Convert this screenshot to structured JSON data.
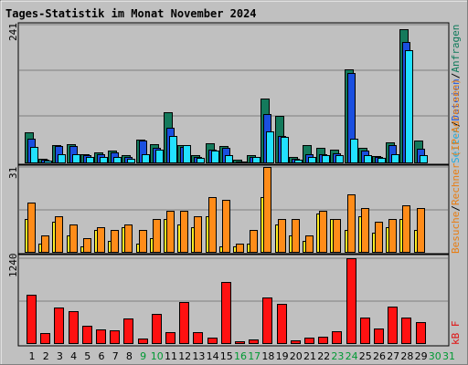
{
  "chart_data": {
    "type": "bar",
    "title": "Tages-Statistik im Monat November 2024",
    "categories": [
      "1",
      "2",
      "3",
      "4",
      "5",
      "6",
      "7",
      "8",
      "9",
      "10",
      "11",
      "12",
      "13",
      "14",
      "15",
      "16",
      "17",
      "18",
      "19",
      "20",
      "21",
      "22",
      "23",
      "24",
      "25",
      "26",
      "27",
      "28",
      "29",
      "30",
      "31"
    ],
    "weekend_days": [
      "9",
      "10",
      "16",
      "17",
      "23",
      "24",
      "30",
      "31"
    ],
    "colors": {
      "title": "#0000cc",
      "weekday_label": "#000000",
      "weekend_label": "#009933",
      "background": "#c0c0c0",
      "grid": "#808080",
      "anfragen": "#147a5c",
      "dateien": "#1a4fe0",
      "seiten": "#22e0ff",
      "rechner": "#ffee22",
      "besuche": "#ff8c19",
      "kb": "#ff1111",
      "label_anfragen": "#0e7a5a",
      "label_dateien": "#2255dd",
      "label_seiten": "#22aadd",
      "label_rechner": "#e87d12",
      "label_kb": "#e01111"
    },
    "panels": [
      {
        "name": "Anfragen/Dateien/Seiten",
        "ymax_label": "241",
        "ylim": [
          0,
          241
        ],
        "series": [
          {
            "name": "Anfragen",
            "values": [
              52,
              7,
              30,
              32,
              15,
              18,
              20,
              12,
              40,
              32,
              88,
              30,
              12,
              33,
              28,
              4,
              13,
              112,
              82,
              10,
              30,
              25,
              22,
              162,
              25,
              11,
              35,
              233,
              38,
              0,
              0
            ]
          },
          {
            "name": "Dateien",
            "values": [
              42,
              5,
              28,
              28,
              13,
              15,
              17,
              10,
              38,
              25,
              61,
              27,
              10,
              23,
              25,
              2,
              9,
              84,
              47,
              7,
              15,
              15,
              16,
              156,
              21,
              9,
              30,
              211,
              24,
              0,
              0
            ]
          },
          {
            "name": "Seiten",
            "values": [
              27,
              3,
              15,
              14,
              10,
              10,
              10,
              7,
              15,
              22,
              46,
              30,
              8,
              20,
              13,
              2,
              9,
              55,
              45,
              5,
              10,
              12,
              12,
              41,
              12,
              8,
              15,
              196,
              13,
              0,
              0
            ]
          }
        ]
      },
      {
        "name": "Rechner (IP-Adressen)/Besuche",
        "ymax_label": "31",
        "ylim": [
          0,
          31
        ],
        "series": [
          {
            "name": "Rechner",
            "values": [
              12,
              3,
              11,
              6,
              2,
              8,
              4,
              9,
              3,
              5,
              12,
              10,
              9,
              13,
              2,
              2,
              3,
              20,
              10,
              6,
              4,
              14,
              12,
              8,
              13,
              7,
              9,
              12,
              8,
              0,
              0
            ]
          },
          {
            "name": "Besuche",
            "values": [
              18,
              6,
              13,
              10,
              5,
              9,
              8,
              10,
              8,
              12,
              15,
              15,
              13,
              20,
              19,
              3,
              8,
              31,
              12,
              12,
              6,
              15,
              12,
              21,
              16,
              11,
              12,
              17,
              16,
              0,
              0
            ]
          }
        ]
      },
      {
        "name": "kB F",
        "ymax_label": "1240",
        "ylim": [
          0,
          1240
        ],
        "series": [
          {
            "name": "kB F",
            "values": [
              713,
              149,
              520,
              470,
              251,
              196,
              188,
              356,
              67,
              425,
              166,
              600,
              165,
              77,
              890,
              31,
              50,
              666,
              569,
              40,
              81,
              99,
              170,
              1240,
              377,
              211,
              533,
              371,
              313,
              0,
              0
            ]
          }
        ]
      }
    ]
  },
  "labels": {
    "title": "Tages-Statistik im Monat November 2024",
    "ymax_top": "241",
    "ymax_mid": "31",
    "ymax_bot": "1240",
    "legend_anfragen": "Anfragen",
    "legend_sep1": "/",
    "legend_dateien": "Dateien",
    "legend_sep2": "/",
    "legend_seiten": "Seiten",
    "legend_rechner": "Rechner (IP-Adressen)",
    "legend_sep3": "/",
    "legend_besuche": "Besuche",
    "legend_kb": "kB F"
  }
}
